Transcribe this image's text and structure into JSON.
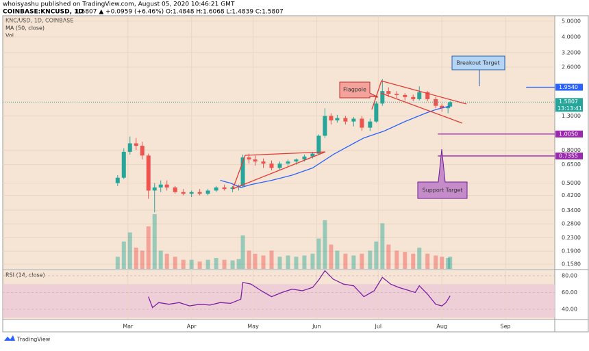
{
  "header": {
    "publisher": "whoisyashu published on TradingView.com, August 05, 2020 10:46:21 GMT",
    "symbol": "COINBASE:KNCUSD, 1D",
    "quote": "1.5807 ▲ +0.0959 (+6.46%) O:1.4848 H:1.6068 L:1.4839 C:1.5807"
  },
  "annotations": {
    "flagpole": "Flagpole",
    "breakout": "Breakout Target",
    "support": "Support Target"
  },
  "footer": {
    "brand": "TradingView"
  },
  "chart_data": {
    "type": "candlestick",
    "title": "KNC/USD, 1D, COINBASE",
    "volume_label": "Vol",
    "log_scale": true,
    "up_color": "#26a69a",
    "down_color": "#ef5350",
    "xlim": [
      -61,
      208
    ],
    "xticks": [
      {
        "value": 0,
        "label": "Mar"
      },
      {
        "value": 31,
        "label": "Apr"
      },
      {
        "value": 61,
        "label": "May"
      },
      {
        "value": 92,
        "label": "Jun"
      },
      {
        "value": 122,
        "label": "Jul"
      },
      {
        "value": 153,
        "label": "Aug"
      },
      {
        "value": 184,
        "label": "Sep"
      }
    ],
    "ylim": [
      0.1477,
      5.4
    ],
    "yticks": [
      {
        "value": 0.158,
        "label": "0.1580"
      },
      {
        "value": 0.19,
        "label": "0.1900"
      },
      {
        "value": 0.23,
        "label": "0.2300"
      },
      {
        "value": 0.28,
        "label": "0.2800"
      },
      {
        "value": 0.34,
        "label": "0.3400"
      },
      {
        "value": 0.42,
        "label": "0.4200"
      },
      {
        "value": 0.5,
        "label": "0.5000"
      },
      {
        "value": 0.65,
        "label": "0.6500"
      },
      {
        "value": 0.8,
        "label": "0.8000"
      },
      {
        "value": 1.3,
        "label": "1.3000"
      },
      {
        "value": 2.6,
        "label": "2.6000"
      },
      {
        "value": 3.2,
        "label": "3.2000"
      },
      {
        "value": 4,
        "label": "4.0000"
      },
      {
        "value": 5,
        "label": "5.0000"
      }
    ],
    "x": [
      -5,
      -2,
      1,
      4,
      7,
      10,
      13,
      16,
      19,
      23,
      27,
      31,
      35,
      39,
      43,
      47,
      51,
      54,
      56,
      59,
      62,
      66,
      70,
      74,
      78,
      82,
      86,
      90,
      93,
      96,
      99,
      102,
      106,
      110,
      114,
      118,
      121,
      124,
      127,
      131,
      135,
      139,
      142,
      146,
      150,
      153,
      156,
      157
    ],
    "open": [
      0.5,
      0.54,
      0.78,
      0.88,
      0.85,
      0.74,
      0.45,
      0.47,
      0.49,
      0.47,
      0.44,
      0.43,
      0.44,
      0.43,
      0.45,
      0.47,
      0.46,
      0.47,
      0.48,
      0.72,
      0.7,
      0.68,
      0.66,
      0.62,
      0.66,
      0.68,
      0.7,
      0.73,
      0.76,
      0.98,
      1.3,
      1.22,
      1.26,
      1.2,
      1.25,
      1.1,
      1.2,
      1.55,
      1.85,
      1.78,
      1.75,
      1.7,
      1.65,
      1.82,
      1.65,
      1.5,
      1.45,
      1.4848
    ],
    "high": [
      0.56,
      0.82,
      0.97,
      0.95,
      0.9,
      0.76,
      0.5,
      0.52,
      0.52,
      0.48,
      0.46,
      0.45,
      0.46,
      0.46,
      0.48,
      0.49,
      0.48,
      0.49,
      0.75,
      0.76,
      0.74,
      0.71,
      0.69,
      0.68,
      0.7,
      0.71,
      0.75,
      0.78,
      1.0,
      1.45,
      1.35,
      1.32,
      1.3,
      1.28,
      1.3,
      1.25,
      1.6,
      2.2,
      1.95,
      1.85,
      1.8,
      1.76,
      1.98,
      1.85,
      1.7,
      1.55,
      1.55,
      1.6068
    ],
    "low": [
      0.48,
      0.53,
      0.75,
      0.8,
      0.7,
      0.4,
      0.33,
      0.44,
      0.45,
      0.43,
      0.42,
      0.41,
      0.42,
      0.42,
      0.44,
      0.45,
      0.44,
      0.45,
      0.47,
      0.66,
      0.64,
      0.62,
      0.6,
      0.6,
      0.64,
      0.65,
      0.68,
      0.71,
      0.75,
      0.95,
      1.15,
      1.18,
      1.15,
      1.12,
      1.05,
      1.05,
      1.18,
      1.5,
      1.7,
      1.68,
      1.62,
      1.6,
      1.62,
      1.6,
      1.45,
      1.38,
      1.35,
      1.4839
    ],
    "close": [
      0.54,
      0.78,
      0.88,
      0.85,
      0.74,
      0.45,
      0.47,
      0.49,
      0.47,
      0.44,
      0.43,
      0.44,
      0.43,
      0.45,
      0.47,
      0.46,
      0.47,
      0.48,
      0.72,
      0.7,
      0.68,
      0.66,
      0.62,
      0.66,
      0.68,
      0.7,
      0.73,
      0.76,
      0.98,
      1.3,
      1.22,
      1.26,
      1.2,
      1.25,
      1.1,
      1.2,
      1.55,
      1.85,
      1.78,
      1.75,
      1.7,
      1.65,
      1.82,
      1.65,
      1.5,
      1.45,
      1.48,
      1.5807
    ],
    "volume": [
      20,
      45,
      60,
      35,
      30,
      70,
      90,
      30,
      25,
      20,
      15,
      15,
      12,
      15,
      18,
      15,
      14,
      16,
      55,
      30,
      25,
      22,
      30,
      20,
      22,
      20,
      22,
      25,
      50,
      80,
      40,
      30,
      25,
      22,
      25,
      30,
      45,
      75,
      40,
      30,
      28,
      25,
      35,
      25,
      22,
      20,
      18,
      20
    ],
    "ma": {
      "name": "MA (50, close)",
      "color": "#2962ff",
      "x": [
        45,
        50,
        55,
        60,
        70,
        80,
        90,
        100,
        110,
        115,
        125,
        135,
        145,
        150,
        157
      ],
      "values": [
        0.52,
        0.5,
        0.47,
        0.49,
        0.52,
        0.56,
        0.62,
        0.75,
        0.88,
        0.95,
        1.05,
        1.2,
        1.35,
        1.42,
        1.5
      ]
    },
    "levels": [
      {
        "value": 1.954,
        "label": "1.9540",
        "color": "#2962ff"
      },
      {
        "value": 1.005,
        "label": "1.0050",
        "color": "#9c27b0"
      },
      {
        "value": 0.7355,
        "label": "0.7355",
        "color": "#9c27b0"
      }
    ],
    "last_price": {
      "value": 1.5807,
      "label": "1.5807",
      "countdown": "13:13:41",
      "color": "#26a69a"
    },
    "rsi": {
      "title": "RSI (14, close)",
      "color": "#7b1fa2",
      "ylim": [
        28.6,
        86.5
      ],
      "band": [
        30,
        70
      ],
      "yticks": [
        {
          "value": 40,
          "label": "40.00"
        },
        {
          "value": 60,
          "label": "60.00"
        },
        {
          "value": 80,
          "label": "80.00"
        }
      ],
      "x": [
        10,
        12,
        15,
        20,
        25,
        30,
        35,
        40,
        45,
        50,
        55,
        56,
        60,
        65,
        70,
        75,
        80,
        85,
        90,
        93,
        96,
        100,
        105,
        110,
        115,
        120,
        124,
        128,
        132,
        136,
        140,
        142,
        146,
        150,
        153,
        155,
        157
      ],
      "values": [
        55,
        42,
        48,
        46,
        48,
        44,
        46,
        45,
        48,
        47,
        52,
        72,
        70,
        62,
        55,
        60,
        64,
        62,
        66,
        75,
        86,
        76,
        70,
        68,
        55,
        62,
        78,
        70,
        66,
        63,
        60,
        68,
        58,
        46,
        44,
        48,
        56
      ]
    }
  }
}
